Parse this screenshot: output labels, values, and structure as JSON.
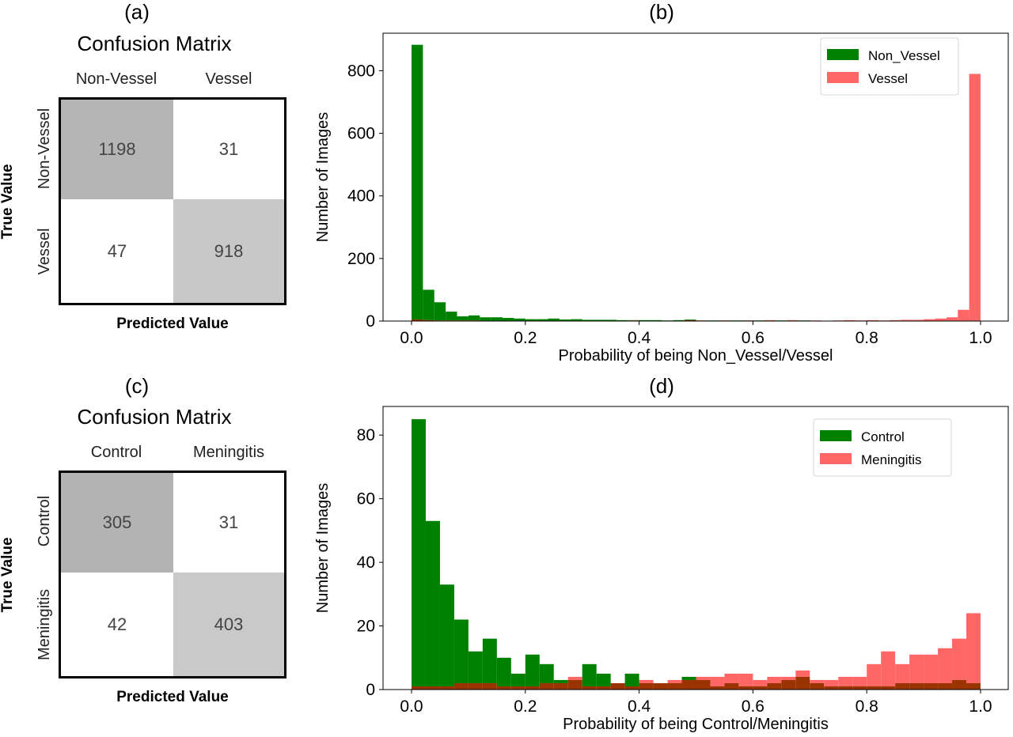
{
  "panels": {
    "a": {
      "label": "(a)",
      "title": "Confusion Matrix",
      "columns": [
        "Non-Vessel",
        "Vessel"
      ],
      "rows": [
        "Non-Vessel",
        "Vessel"
      ],
      "values": [
        [
          "1198",
          "31"
        ],
        [
          "47",
          "918"
        ]
      ],
      "ylabel": "True Value",
      "xlabel": "Predicted Value"
    },
    "b": {
      "label": "(b)"
    },
    "c": {
      "label": "(c)",
      "title": "Confusion Matrix",
      "columns": [
        "Control",
        "Meningitis"
      ],
      "rows": [
        "Control",
        "Meningitis"
      ],
      "values": [
        [
          "305",
          "31"
        ],
        [
          "42",
          "403"
        ]
      ],
      "ylabel": "True Value",
      "xlabel": "Predicted Value"
    },
    "d": {
      "label": "(d)"
    }
  },
  "colors": {
    "diag_a_tl": "#b5b5b5",
    "diag_a_br": "#c8c8c8",
    "diag_c_tl": "#b3b3b3",
    "diag_c_br": "#c9c9c9",
    "green": "#008000",
    "red": "#ff6666",
    "overlap": "#993300"
  },
  "chart_data": [
    {
      "type": "bar",
      "subtype": "overlaid-histogram",
      "bins": 50,
      "xlim": [
        0,
        1
      ],
      "ylim": [
        0,
        920
      ],
      "xticks": [
        "0.0",
        "0.2",
        "0.4",
        "0.6",
        "0.8",
        "1.0"
      ],
      "yticks": [
        "0",
        "200",
        "400",
        "600",
        "800"
      ],
      "xlabel": "Probability of being Non_Vessel/Vessel",
      "ylabel": "Number of Images",
      "legend_position": "top-right",
      "series": [
        {
          "name": "Non_Vessel",
          "color": "#008000",
          "values": [
            883,
            100,
            60,
            30,
            15,
            18,
            12,
            12,
            10,
            8,
            6,
            6,
            8,
            5,
            6,
            4,
            4,
            4,
            3,
            3,
            3,
            3,
            2,
            3,
            5,
            2,
            2,
            2,
            2,
            2,
            2,
            2,
            2,
            2,
            2,
            1,
            1,
            1,
            1,
            1,
            1,
            1,
            1,
            1,
            1,
            1,
            1,
            1,
            1,
            0
          ]
        },
        {
          "name": "Vessel",
          "color": "#ff6666",
          "values": [
            5,
            3,
            2,
            2,
            2,
            2,
            1,
            1,
            1,
            1,
            1,
            1,
            1,
            1,
            1,
            1,
            1,
            1,
            1,
            2,
            1,
            1,
            1,
            1,
            3,
            2,
            1,
            2,
            1,
            2,
            1,
            3,
            1,
            3,
            1,
            2,
            1,
            2,
            3,
            2,
            3,
            2,
            3,
            4,
            4,
            6,
            8,
            12,
            36,
            790
          ]
        }
      ]
    },
    {
      "type": "bar",
      "subtype": "overlaid-histogram",
      "bins": 40,
      "xlim": [
        0,
        1
      ],
      "ylim": [
        0,
        89
      ],
      "xticks": [
        "0.0",
        "0.2",
        "0.4",
        "0.6",
        "0.8",
        "1.0"
      ],
      "yticks": [
        "0",
        "20",
        "40",
        "60",
        "80"
      ],
      "xlabel": "Probability of being Control/Meningitis",
      "ylabel": "Number of Images",
      "legend_position": "top-right",
      "series": [
        {
          "name": "Control",
          "color": "#008000",
          "values": [
            85,
            53,
            33,
            22,
            12,
            16,
            10,
            5,
            11,
            8,
            3,
            3,
            8,
            5,
            2,
            5,
            2,
            2,
            2,
            4,
            3,
            1,
            2,
            1,
            1,
            2,
            3,
            4,
            2,
            1,
            1,
            1,
            1,
            1,
            2,
            2,
            2,
            2,
            3,
            2
          ]
        },
        {
          "name": "Meningitis",
          "color": "#ff6666",
          "values": [
            1,
            1,
            1,
            2,
            2,
            2,
            1,
            1,
            1,
            2,
            2,
            4,
            1,
            1,
            2,
            1,
            3,
            2,
            3,
            3,
            4,
            4,
            5,
            5,
            3,
            4,
            4,
            6,
            3,
            3,
            4,
            4,
            8,
            12,
            8,
            11,
            11,
            13,
            16,
            24
          ]
        }
      ]
    }
  ]
}
